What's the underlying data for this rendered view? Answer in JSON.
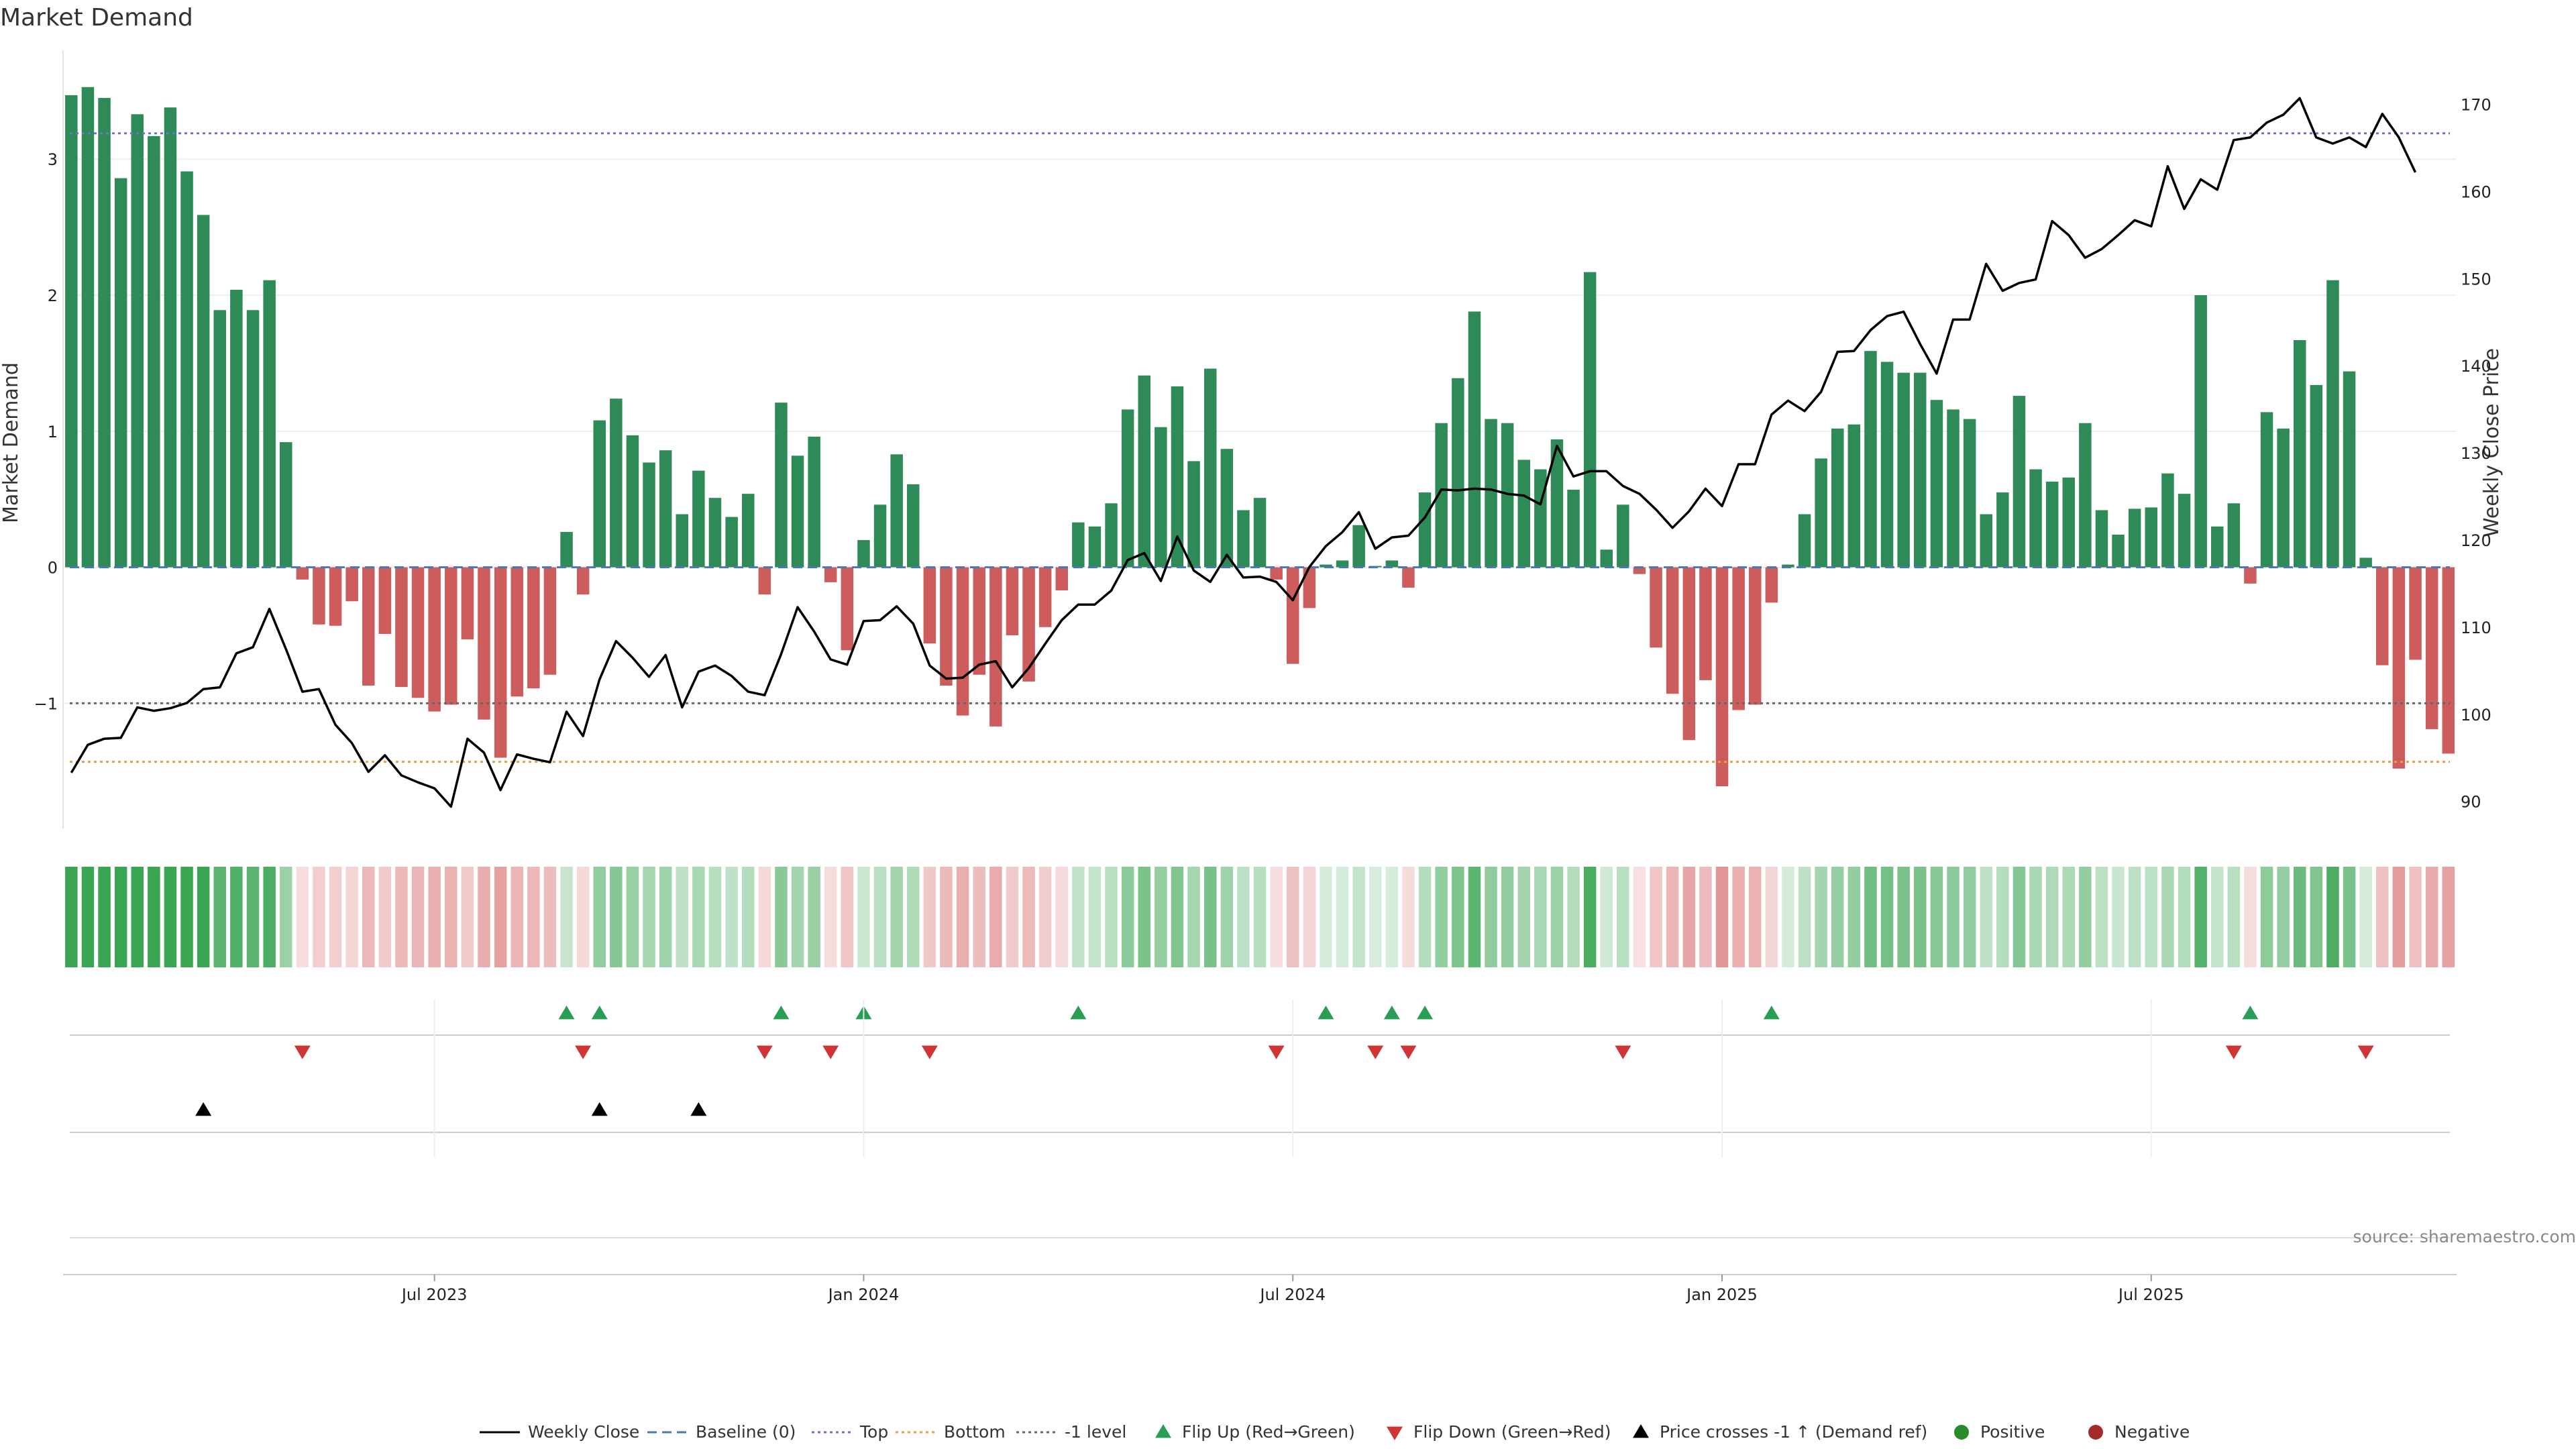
{
  "chart_data": {
    "type": "bar",
    "title": "Market Demand",
    "ylabel": "Market Demand",
    "y2label": "Weekly Close Price",
    "ylim": [
      -1.92,
      3.8
    ],
    "y2lim": [
      86.9,
      176.2
    ],
    "yticks": [
      {
        "v": 3,
        "label": "3"
      },
      {
        "v": 2,
        "label": "2"
      },
      {
        "v": 1,
        "label": "1"
      },
      {
        "v": 0,
        "label": "0"
      },
      {
        "v": -1,
        "label": "−1"
      }
    ],
    "y2ticks": [
      {
        "v": 170,
        "label": "170"
      },
      {
        "v": 160,
        "label": "160"
      },
      {
        "v": 150,
        "label": "150"
      },
      {
        "v": 140,
        "label": "140"
      },
      {
        "v": 130,
        "label": "130"
      },
      {
        "v": 120,
        "label": "120"
      },
      {
        "v": 110,
        "label": "110"
      },
      {
        "v": 100,
        "label": "100"
      },
      {
        "v": 90,
        "label": "90"
      }
    ],
    "xticks": [
      {
        "week": 22,
        "label": "Jul 2023"
      },
      {
        "week": 48,
        "label": "Jan 2024"
      },
      {
        "week": 74,
        "label": "Jul 2024"
      },
      {
        "week": 100,
        "label": "Jan 2025"
      },
      {
        "week": 126,
        "label": "Jul 2025"
      }
    ],
    "reference_lines": {
      "top": 3.19,
      "bottom": -1.43,
      "minus_one": -1,
      "baseline": 0
    },
    "demand": [
      3.47,
      3.53,
      3.45,
      2.86,
      3.33,
      3.17,
      3.38,
      2.91,
      2.59,
      1.89,
      2.04,
      1.89,
      2.11,
      0.92,
      -0.09,
      -0.42,
      -0.43,
      -0.25,
      -0.87,
      -0.49,
      -0.88,
      -0.96,
      -1.06,
      -1.01,
      -0.53,
      -1.12,
      -1.4,
      -0.95,
      -0.89,
      -0.79,
      0.26,
      -0.2,
      1.08,
      1.24,
      0.97,
      0.77,
      0.86,
      0.39,
      0.71,
      0.51,
      0.37,
      0.54,
      -0.2,
      1.21,
      0.82,
      0.96,
      -0.11,
      -0.61,
      0.2,
      0.46,
      0.83,
      0.61,
      -0.56,
      -0.87,
      -1.09,
      -0.79,
      -1.17,
      -0.5,
      -0.84,
      -0.44,
      -0.17,
      0.33,
      0.3,
      0.47,
      1.16,
      1.41,
      1.03,
      1.33,
      0.78,
      1.46,
      0.87,
      0.42,
      0.51,
      -0.09,
      -0.71,
      -0.3,
      0.02,
      0.05,
      0.31,
      0.01,
      0.05,
      -0.15,
      0.55,
      1.06,
      1.39,
      1.88,
      1.09,
      1.06,
      0.79,
      0.72,
      0.94,
      0.57,
      2.17,
      0.13,
      0.46,
      -0.05,
      -0.59,
      -0.93,
      -1.27,
      -0.83,
      -1.61,
      -1.05,
      -1.01,
      -0.26,
      0.02,
      0.39,
      0.8,
      1.02,
      1.05,
      1.59,
      1.51,
      1.43,
      1.43,
      1.23,
      1.16,
      1.09,
      0.39,
      0.55,
      1.26,
      0.72,
      0.63,
      0.66,
      1.06,
      0.42,
      0.24,
      0.43,
      0.44,
      0.69,
      0.54,
      2.0,
      0.3,
      0.47,
      -0.12,
      1.14,
      1.02,
      1.67,
      1.34,
      2.11,
      1.44,
      0.07,
      -0.72,
      -1.48,
      -0.68,
      -1.19,
      -1.37
    ],
    "weekly_close": [
      93.3,
      96.5,
      97.2,
      97.3,
      100.8,
      100.4,
      100.7,
      101.3,
      102.9,
      103.1,
      107,
      107.7,
      112.1,
      107.5,
      102.6,
      102.9,
      98.8,
      96.7,
      93.4,
      95.3,
      93,
      92.2,
      91.5,
      89.4,
      97.2,
      95.6,
      91.3,
      95.4,
      94.9,
      94.5,
      100.3,
      97.5,
      104,
      108.4,
      106.5,
      104.3,
      106.8,
      100.8,
      104.9,
      105.6,
      104.4,
      102.6,
      102.2,
      106.9,
      112.3,
      109.5,
      106.3,
      105.7,
      110.7,
      110.8,
      112.4,
      110.4,
      105.6,
      104.1,
      104.2,
      105.7,
      106.1,
      103.1,
      105.3,
      108.1,
      110.8,
      112.6,
      112.6,
      114.2,
      117.7,
      118.5,
      115.3,
      120.4,
      116.5,
      115.2,
      118.3,
      115.7,
      115.8,
      115.2,
      113.1,
      116.9,
      119.3,
      120.9,
      123.2,
      119,
      120.3,
      120.5,
      122.6,
      125.8,
      125.7,
      125.9,
      125.8,
      125.3,
      125.1,
      124.1,
      130.8,
      127.3,
      127.9,
      127.9,
      126.2,
      125.3,
      123.5,
      121.4,
      123.3,
      125.9,
      123.9,
      128.7,
      128.7,
      134.4,
      136,
      134.8,
      137,
      141.6,
      141.7,
      144.1,
      145.7,
      146.2,
      142.5,
      139.1,
      145.3,
      145.3,
      151.7,
      148.6,
      149.5,
      149.9,
      156.6,
      155,
      152.4,
      153.4,
      155,
      156.7,
      156,
      162.9,
      158,
      161.4,
      160.2,
      165.9,
      166.2,
      167.9,
      168.8,
      170.7,
      166.2,
      165.5,
      166.2,
      165.1,
      168.9,
      166.2,
      162.2
    ],
    "flip_up_weeks": [
      30,
      32,
      43,
      48,
      61,
      76,
      80,
      82,
      103,
      132
    ],
    "flip_down_weeks": [
      14,
      31,
      42,
      46,
      52,
      73,
      79,
      81,
      94,
      131,
      139
    ],
    "price_cross_weeks": [
      8,
      32,
      38
    ],
    "legend": [
      {
        "label": "Weekly Close",
        "icon": "line-solid-icon",
        "color": "#000000"
      },
      {
        "label": "Baseline (0)",
        "icon": "line-dash-icon",
        "color": "#4a78b0"
      },
      {
        "label": "Top",
        "icon": "line-dot-icon",
        "color": "#6a74c8"
      },
      {
        "label": "Bottom",
        "icon": "line-dot-icon",
        "color": "#e8a040"
      },
      {
        "label": "-1 level",
        "icon": "line-dot-icon",
        "color": "#666666"
      },
      {
        "label": "Flip Up (Red→Green)",
        "icon": "triangle-up-icon",
        "color": "#2a9d55"
      },
      {
        "label": "Flip Down (Green→Red)",
        "icon": "triangle-down-icon",
        "color": "#d03535"
      },
      {
        "label": "Price crosses -1 ↑ (Demand ref)",
        "icon": "triangle-up-icon",
        "color": "#000000"
      },
      {
        "label": "Positive",
        "icon": "circle-icon",
        "color": "#2a8a2a"
      },
      {
        "label": "Negative",
        "icon": "circle-icon",
        "color": "#a52a2a"
      }
    ],
    "source": "source: sharemaestro.com"
  },
  "colors": {
    "positive_bar": "#2e8b57",
    "negative_bar": "#cd5c5c",
    "price_line": "#000000",
    "top_line": "#6a74c8",
    "bottom_line": "#e8a040",
    "minus_one_line": "#666666",
    "baseline": "#4a78b0",
    "heat_positive": "#3aa552",
    "heat_negative": "#d97070",
    "flip_up": "#2a9d55",
    "flip_down": "#d03535",
    "cross_marker": "#000000"
  }
}
